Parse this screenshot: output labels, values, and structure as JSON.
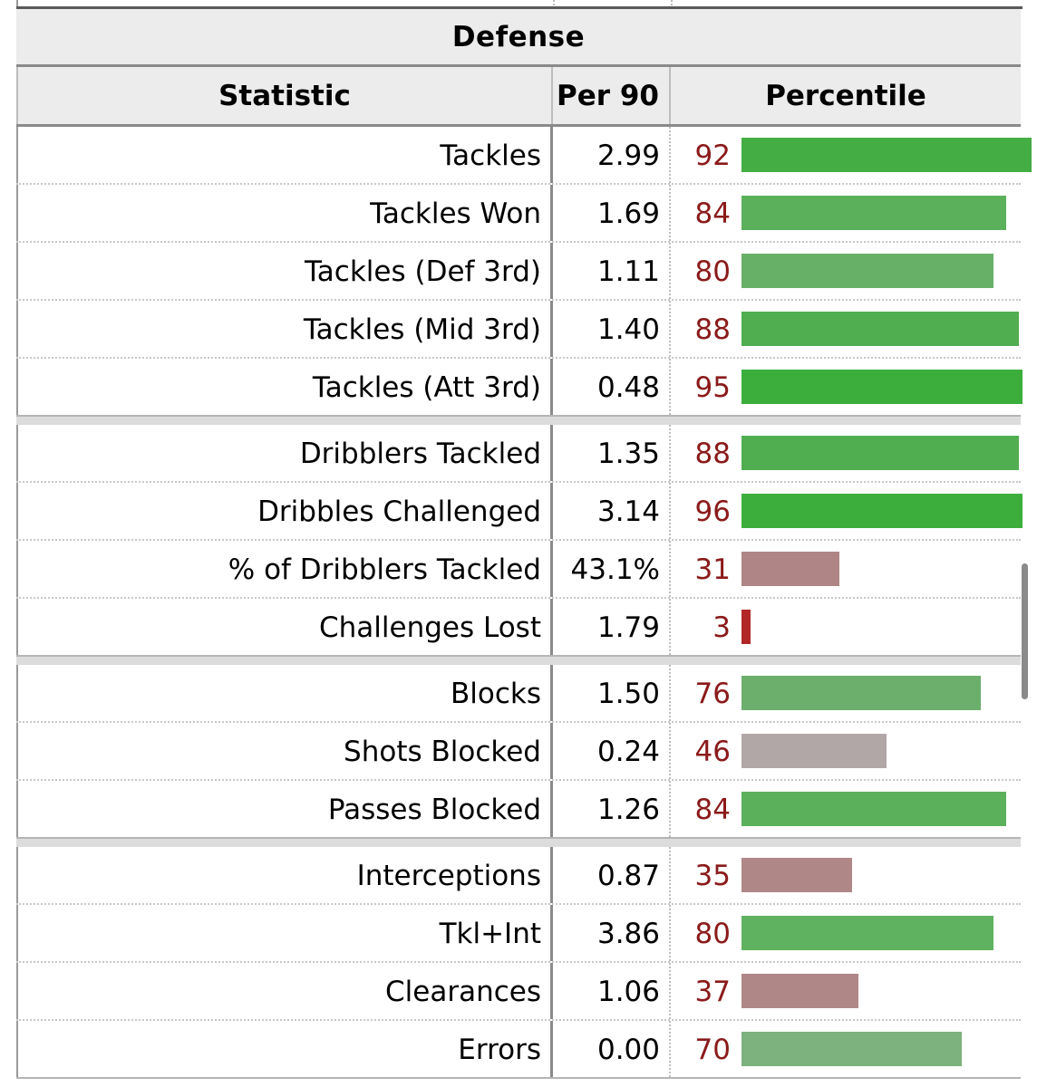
{
  "section_title": "Defense",
  "columns": {
    "statistic": "Statistic",
    "per90": "Per 90",
    "percentile": "Percentile"
  },
  "colors": {
    "high": "#3fae3f",
    "mid_high": "#5fb25f",
    "low": "#b08787",
    "neutral": "#b0a6a6",
    "very_low": "#b22222",
    "percentile_text": "#8b1a1a"
  },
  "rows": [
    {
      "stat": "Tackles",
      "per90": "2.99",
      "pct": "92",
      "pct_value": 92,
      "color": "#44ad44",
      "group_end": false
    },
    {
      "stat": "Tackles Won",
      "per90": "1.69",
      "pct": "84",
      "pct_value": 84,
      "color": "#5bb15b",
      "group_end": false
    },
    {
      "stat": "Tackles (Def 3rd)",
      "per90": "1.11",
      "pct": "80",
      "pct_value": 80,
      "color": "#67b067",
      "group_end": false
    },
    {
      "stat": "Tackles (Mid 3rd)",
      "per90": "1.40",
      "pct": "88",
      "pct_value": 88,
      "color": "#50ae50",
      "group_end": false
    },
    {
      "stat": "Tackles (Att 3rd)",
      "per90": "0.48",
      "pct": "95",
      "pct_value": 95,
      "color": "#3cae3c",
      "group_end": true
    },
    {
      "stat": "Dribblers Tackled",
      "per90": "1.35",
      "pct": "88",
      "pct_value": 88,
      "color": "#50ae50",
      "group_end": false
    },
    {
      "stat": "Dribbles Challenged",
      "per90": "3.14",
      "pct": "96",
      "pct_value": 96,
      "color": "#3cae3c",
      "group_end": false
    },
    {
      "stat": "% of Dribblers Tackled",
      "per90": "43.1%",
      "pct": "31",
      "pct_value": 31,
      "color": "#b08585",
      "group_end": false
    },
    {
      "stat": "Challenges Lost",
      "per90": "1.79",
      "pct": "3",
      "pct_value": 3,
      "color": "#b22828",
      "group_end": true
    },
    {
      "stat": "Blocks",
      "per90": "1.50",
      "pct": "76",
      "pct_value": 76,
      "color": "#6caf6c",
      "group_end": false
    },
    {
      "stat": "Shots Blocked",
      "per90": "0.24",
      "pct": "46",
      "pct_value": 46,
      "color": "#b2a7a7",
      "group_end": false
    },
    {
      "stat": "Passes Blocked",
      "per90": "1.26",
      "pct": "84",
      "pct_value": 84,
      "color": "#5bb15b",
      "group_end": true
    },
    {
      "stat": "Interceptions",
      "per90": "0.87",
      "pct": "35",
      "pct_value": 35,
      "color": "#b08787",
      "group_end": false
    },
    {
      "stat": "Tkl+Int",
      "per90": "3.86",
      "pct": "80",
      "pct_value": 80,
      "color": "#5fb25f",
      "group_end": false
    },
    {
      "stat": "Clearances",
      "per90": "1.06",
      "pct": "37",
      "pct_value": 37,
      "color": "#b08787",
      "group_end": false
    },
    {
      "stat": "Errors",
      "per90": "0.00",
      "pct": "70",
      "pct_value": 70,
      "color": "#7db17d",
      "group_end": false
    }
  ]
}
